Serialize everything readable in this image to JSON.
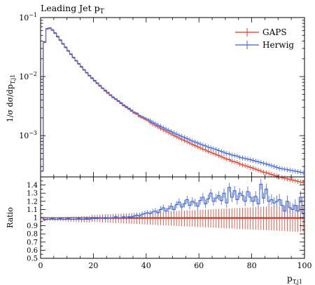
{
  "chart_data": {
    "type": "line",
    "title": "Leading Jet p",
    "title_sub": "T",
    "xlabel": "p",
    "xlabel_sub": "T,j1",
    "ylabel": "1/σ dσ/dp",
    "ylabel_sub": "T,j1",
    "ratio_label": "Ratio",
    "xlim": [
      0,
      100
    ],
    "ylim": [
      0.0002,
      0.1
    ],
    "yscale": "log",
    "ratio_ylim": [
      0.5,
      1.5
    ],
    "xticks": [
      0,
      20,
      40,
      60,
      80,
      100
    ],
    "yticks_main": [
      {
        "value": 0.001,
        "base": "10",
        "exp": "−3"
      },
      {
        "value": 0.01,
        "base": "10",
        "exp": "−2"
      },
      {
        "value": 0.1,
        "base": "10",
        "exp": "−1"
      }
    ],
    "yticks_ratio": [
      0.5,
      0.6,
      0.7,
      0.8,
      0.9,
      1,
      1.1,
      1.2,
      1.3,
      1.4
    ],
    "legend_position": "top-right",
    "series": [
      {
        "name": "GAPS",
        "color": "#e8351f",
        "x": [
          0,
          1,
          2,
          3,
          4,
          5,
          6,
          7,
          8,
          9,
          10,
          11,
          12,
          13,
          14,
          15,
          16,
          17,
          18,
          19,
          20,
          21,
          22,
          23,
          24,
          25,
          26,
          27,
          28,
          29,
          30,
          31,
          32,
          33,
          34,
          35,
          36,
          37,
          38,
          39,
          40,
          41,
          42,
          43,
          44,
          45,
          46,
          47,
          48,
          49,
          50,
          51,
          52,
          53,
          54,
          55,
          56,
          57,
          58,
          59,
          60,
          61,
          62,
          63,
          64,
          65,
          66,
          67,
          68,
          69,
          70,
          71,
          72,
          73,
          74,
          75,
          76,
          77,
          78,
          79,
          80,
          81,
          82,
          83,
          84,
          85,
          86,
          87,
          88,
          89,
          90,
          91,
          92,
          93,
          94,
          95,
          96,
          97,
          98,
          99
        ],
        "y": [
          0.00025,
          0.038,
          0.064,
          0.066,
          0.061,
          0.054,
          0.047,
          0.041,
          0.0355,
          0.031,
          0.027,
          0.0237,
          0.0208,
          0.0184,
          0.0163,
          0.0145,
          0.0129,
          0.0115,
          0.0103,
          0.0093,
          0.0084,
          0.0076,
          0.0069,
          0.0063,
          0.0057,
          0.0052,
          0.0048,
          0.0044,
          0.0041,
          0.0038,
          0.0035,
          0.0032,
          0.003,
          0.0028,
          0.0026,
          0.0024,
          0.0023,
          0.0021,
          0.002,
          0.0019,
          0.0018,
          0.00168,
          0.00158,
          0.00149,
          0.00141,
          0.00133,
          0.00126,
          0.00119,
          0.00113,
          0.00107,
          0.00101,
          0.00096,
          0.00091,
          0.00087,
          0.00083,
          0.00079,
          0.00075,
          0.00071,
          0.00068,
          0.00065,
          0.00062,
          0.00059,
          0.00057,
          0.00054,
          0.00052,
          0.0005,
          0.00048,
          0.00046,
          0.00044,
          0.00042,
          0.0004,
          0.00039,
          0.00037,
          0.00036,
          0.00035,
          0.00033,
          0.00032,
          0.00031,
          0.0003,
          0.00029,
          0.00028,
          0.00027,
          0.00026,
          0.00025,
          0.00024,
          0.000235,
          0.000228,
          0.00022,
          0.000213,
          0.000206,
          0.0002,
          0.000195,
          0.00019,
          0.000185,
          0.00018,
          0.000176,
          0.000172,
          0.000168,
          0.000164,
          0.00016
        ],
        "ratio": [
          1,
          0.97,
          0.98,
          0.98,
          0.98,
          0.98,
          0.98,
          0.98,
          0.98,
          0.98,
          0.98,
          0.98,
          0.98,
          0.98,
          0.98,
          0.98,
          0.98,
          0.98,
          0.98,
          0.99,
          0.99,
          0.99,
          0.99,
          0.99,
          0.99,
          0.99,
          0.99,
          0.99,
          0.99,
          0.99,
          0.99,
          0.99,
          0.99,
          0.99,
          0.99,
          0.99,
          0.99,
          0.99,
          0.99,
          0.99,
          0.99,
          0.99,
          0.99,
          0.99,
          0.99,
          0.99,
          0.99,
          0.99,
          0.99,
          0.99,
          0.99,
          0.99,
          0.99,
          0.99,
          0.99,
          0.99,
          0.99,
          0.99,
          0.99,
          0.99,
          0.99,
          0.99,
          0.99,
          0.99,
          0.99,
          0.99,
          0.99,
          0.99,
          0.99,
          0.99,
          0.99,
          0.99,
          0.99,
          0.99,
          0.99,
          0.99,
          0.99,
          0.99,
          0.99,
          0.99,
          0.99,
          0.99,
          0.99,
          0.99,
          0.99,
          0.99,
          0.99,
          0.99,
          0.99,
          0.99,
          0.99,
          0.99,
          0.99,
          0.99,
          0.99,
          0.99,
          0.99,
          0.99,
          0.99,
          0.99
        ]
      },
      {
        "name": "Herwig",
        "color": "#3b5fe0",
        "x": [
          0,
          1,
          2,
          3,
          4,
          5,
          6,
          7,
          8,
          9,
          10,
          11,
          12,
          13,
          14,
          15,
          16,
          17,
          18,
          19,
          20,
          21,
          22,
          23,
          24,
          25,
          26,
          27,
          28,
          29,
          30,
          31,
          32,
          33,
          34,
          35,
          36,
          37,
          38,
          39,
          40,
          41,
          42,
          43,
          44,
          45,
          46,
          47,
          48,
          49,
          50,
          51,
          52,
          53,
          54,
          55,
          56,
          57,
          58,
          59,
          60,
          61,
          62,
          63,
          64,
          65,
          66,
          67,
          68,
          69,
          70,
          71,
          72,
          73,
          74,
          75,
          76,
          77,
          78,
          79,
          80,
          81,
          82,
          83,
          84,
          85,
          86,
          87,
          88,
          89,
          90,
          91,
          92,
          93,
          94,
          95,
          96,
          97,
          98,
          99
        ],
        "y": [
          0.00025,
          0.039,
          0.065,
          0.067,
          0.062,
          0.055,
          0.048,
          0.0418,
          0.0362,
          0.0316,
          0.0275,
          0.0241,
          0.0212,
          0.0187,
          0.0166,
          0.0148,
          0.0131,
          0.0117,
          0.0105,
          0.0095,
          0.0086,
          0.0078,
          0.0071,
          0.0064,
          0.0059,
          0.0054,
          0.0049,
          0.0045,
          0.0042,
          0.0039,
          0.0036,
          0.0033,
          0.0031,
          0.0029,
          0.0027,
          0.0025,
          0.0024,
          0.0022,
          0.0021,
          0.002,
          0.0019,
          0.00178,
          0.00168,
          0.00159,
          0.00151,
          0.00143,
          0.00136,
          0.00129,
          0.00123,
          0.00117,
          0.00111,
          0.00106,
          0.00101,
          0.00097,
          0.00093,
          0.00089,
          0.00085,
          0.00081,
          0.00078,
          0.00075,
          0.00072,
          0.00069,
          0.00067,
          0.00064,
          0.00062,
          0.0006,
          0.00058,
          0.00056,
          0.00054,
          0.00052,
          0.0005,
          0.00049,
          0.00047,
          0.00046,
          0.00045,
          0.00043,
          0.00042,
          0.00041,
          0.0004,
          0.00039,
          0.00038,
          0.00037,
          0.00036,
          0.00035,
          0.00034,
          0.00033,
          0.00032,
          0.00031,
          0.0003,
          0.00029,
          0.00028,
          0.000275,
          0.00027,
          0.000265,
          0.00026,
          0.000255,
          0.00025,
          0.000245,
          0.00024,
          0.000235
        ],
        "ratio": [
          1,
          0.98,
          0.98,
          0.98,
          0.99,
          0.98,
          0.98,
          0.99,
          0.98,
          0.98,
          0.99,
          0.98,
          0.98,
          0.98,
          0.99,
          0.98,
          0.98,
          0.99,
          0.98,
          0.99,
          0.99,
          0.99,
          1,
          1,
          0.99,
          1,
          1,
          1,
          1.01,
          1,
          1,
          1.01,
          1,
          1.01,
          1.01,
          1.02,
          1.03,
          1.02,
          1.04,
          1.05,
          1.06,
          1.05,
          1.07,
          1.08,
          1.06,
          1.1,
          1.12,
          1.08,
          1.11,
          1.14,
          1.1,
          1.16,
          1.19,
          1.13,
          1.17,
          1.22,
          1.15,
          1.2,
          1.18,
          1.14,
          1.21,
          1.25,
          1.17,
          1.23,
          1.3,
          1.2,
          1.24,
          1.27,
          1.21,
          1.3,
          1.18,
          1.37,
          1.25,
          1.33,
          1.22,
          1.3,
          1.27,
          1.2,
          1.32,
          1.25,
          1.2,
          1.26,
          1.17,
          1.41,
          1.24,
          1.35,
          1.2,
          1.22,
          1.18,
          1.2,
          1.22,
          1.15,
          1.08,
          1.2,
          1.12,
          1.1,
          1.15,
          1.08,
          1.25,
          1.05
        ]
      }
    ]
  }
}
